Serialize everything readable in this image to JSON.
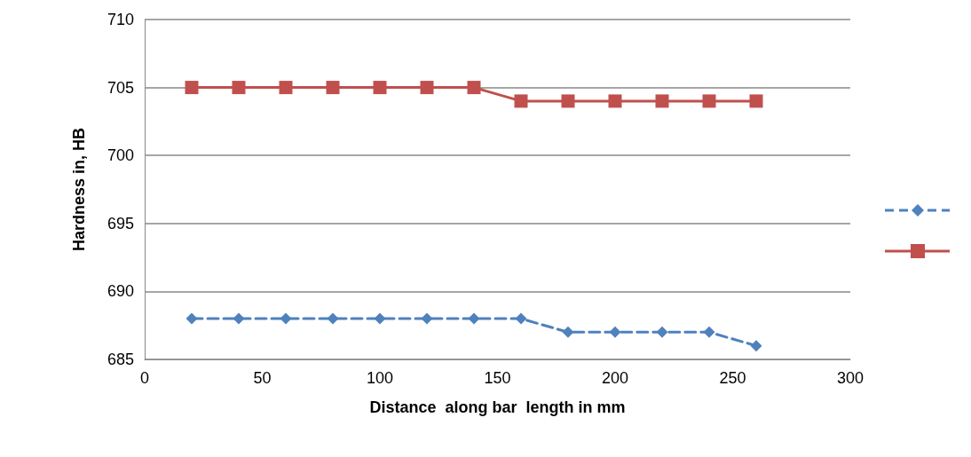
{
  "chart_data": {
    "type": "line",
    "xlabel": "Distance  along bar  length in mm",
    "ylabel": "Hardness in, HB",
    "x": [
      20,
      40,
      60,
      80,
      100,
      120,
      140,
      160,
      180,
      200,
      220,
      240,
      260
    ],
    "series": [
      {
        "color": "#4f81bd",
        "marker": "diamond",
        "line_style": "dashed",
        "values": [
          688,
          688,
          688,
          688,
          688,
          688,
          688,
          688,
          687,
          687,
          687,
          687,
          686
        ]
      },
      {
        "color": "#c0504d",
        "marker": "square",
        "line_style": "solid",
        "values": [
          705,
          705,
          705,
          705,
          705,
          705,
          705,
          704,
          704,
          704,
          704,
          704,
          704
        ]
      }
    ],
    "xlim": [
      0,
      300
    ],
    "xticks": [
      0,
      50,
      100,
      150,
      200,
      250,
      300
    ],
    "ylim": [
      685,
      710
    ],
    "yticks": [
      685,
      690,
      695,
      700,
      705,
      710
    ],
    "grid": "y"
  }
}
